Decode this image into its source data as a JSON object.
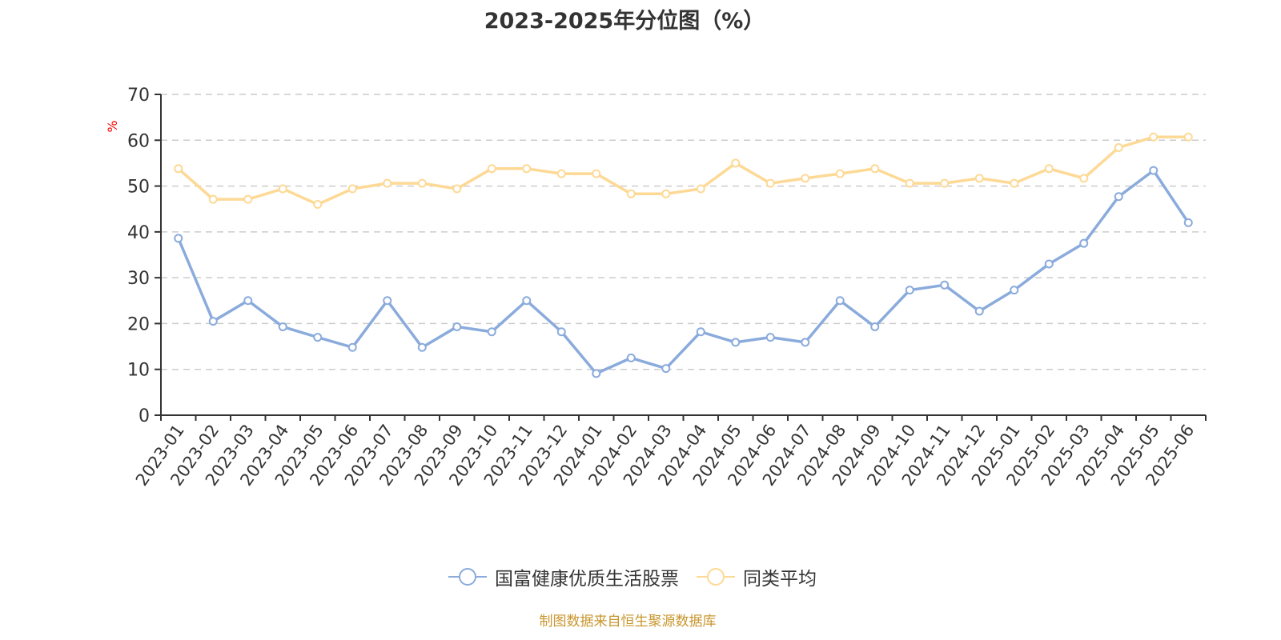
{
  "title": "2023-2025年分位图（%）",
  "source_note": "制图数据来自恒生聚源数据库",
  "colors": {
    "series1": "#8aabdb",
    "series2": "#fdd995",
    "axis": "#333333",
    "grid": "#cccccc",
    "unit": "#ff0000",
    "source": "#c9962e"
  },
  "legend": [
    {
      "label": "国富健康优质生活股票",
      "color": "#8aabdb"
    },
    {
      "label": "同类平均",
      "color": "#fdd995"
    }
  ],
  "chart_data": {
    "type": "line",
    "title": "2023-2025年分位图（%）",
    "xlabel": "",
    "ylabel": "%",
    "ylim": [
      0,
      70
    ],
    "yticks": [
      0,
      10,
      20,
      30,
      40,
      50,
      60,
      70
    ],
    "grid": true,
    "legend_position": "bottom",
    "categories": [
      "2023-01",
      "2023-02",
      "2023-03",
      "2023-04",
      "2023-05",
      "2023-06",
      "2023-07",
      "2023-08",
      "2023-09",
      "2023-10",
      "2023-11",
      "2023-12",
      "2024-01",
      "2024-02",
      "2024-03",
      "2024-04",
      "2024-05",
      "2024-06",
      "2024-07",
      "2024-08",
      "2024-09",
      "2024-10",
      "2024-11",
      "2024-12",
      "2025-01",
      "2025-02",
      "2025-03",
      "2025-04",
      "2025-05",
      "2025-06"
    ],
    "series": [
      {
        "name": "国富健康优质生活股票",
        "values": [
          38.6,
          20.5,
          25.0,
          19.3,
          17.0,
          14.8,
          25.0,
          14.8,
          19.3,
          18.2,
          25.0,
          18.2,
          9.1,
          12.5,
          10.2,
          18.2,
          15.9,
          17.0,
          15.9,
          25.0,
          19.3,
          27.3,
          28.4,
          22.7,
          27.3,
          33.0,
          37.5,
          47.7,
          53.4,
          42.0
        ]
      },
      {
        "name": "同类平均",
        "values": [
          53.8,
          47.1,
          47.1,
          49.4,
          46.0,
          49.4,
          50.6,
          50.6,
          49.4,
          53.8,
          53.8,
          52.7,
          52.7,
          48.3,
          48.3,
          49.4,
          55.0,
          50.6,
          51.7,
          52.7,
          53.8,
          50.6,
          50.6,
          51.7,
          50.6,
          53.8,
          51.7,
          58.4,
          60.7,
          60.7
        ]
      }
    ]
  }
}
